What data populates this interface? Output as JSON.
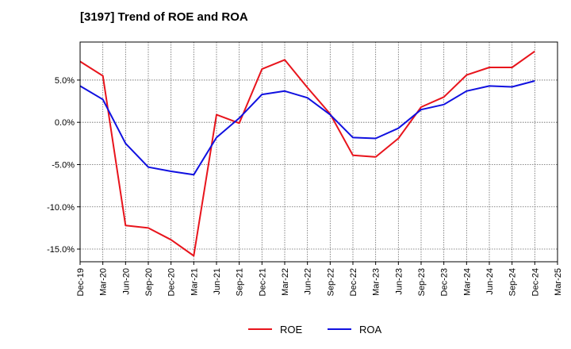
{
  "chart_data": {
    "type": "line",
    "title": "[3197]  Trend of ROE and ROA",
    "xlabel": "",
    "ylabel": "",
    "categories": [
      "Dec-19",
      "Mar-20",
      "Jun-20",
      "Sep-20",
      "Dec-20",
      "Mar-21",
      "Jun-21",
      "Sep-21",
      "Dec-21",
      "Mar-22",
      "Jun-22",
      "Sep-22",
      "Dec-22",
      "Mar-23",
      "Jun-23",
      "Sep-23",
      "Dec-23",
      "Mar-24",
      "Jun-24",
      "Sep-24",
      "Dec-24",
      "Mar-25"
    ],
    "ylim": [
      -16.5,
      9.5
    ],
    "yticks": [
      5.0,
      0.0,
      -5.0,
      -10.0,
      -15.0
    ],
    "ytick_labels": [
      "5.0%",
      "0.0%",
      "-5.0%",
      "-10.0%",
      "-15.0%"
    ],
    "grid": true,
    "legend_position": "bottom-center",
    "series": [
      {
        "name": "ROE",
        "color": "#e8141c",
        "values": [
          7.2,
          5.5,
          -12.2,
          -12.5,
          -13.9,
          -15.8,
          0.9,
          -0.1,
          6.3,
          7.4,
          4.1,
          1.0,
          -3.9,
          -4.1,
          -1.9,
          1.8,
          3.0,
          5.6,
          6.5,
          6.5,
          8.4,
          null
        ]
      },
      {
        "name": "ROA",
        "color": "#1010e0",
        "values": [
          4.3,
          2.7,
          -2.5,
          -5.3,
          -5.8,
          -6.2,
          -1.8,
          0.5,
          3.3,
          3.7,
          2.9,
          0.9,
          -1.8,
          -1.9,
          -0.7,
          1.5,
          2.1,
          3.7,
          4.3,
          4.2,
          4.9,
          null
        ]
      }
    ]
  }
}
